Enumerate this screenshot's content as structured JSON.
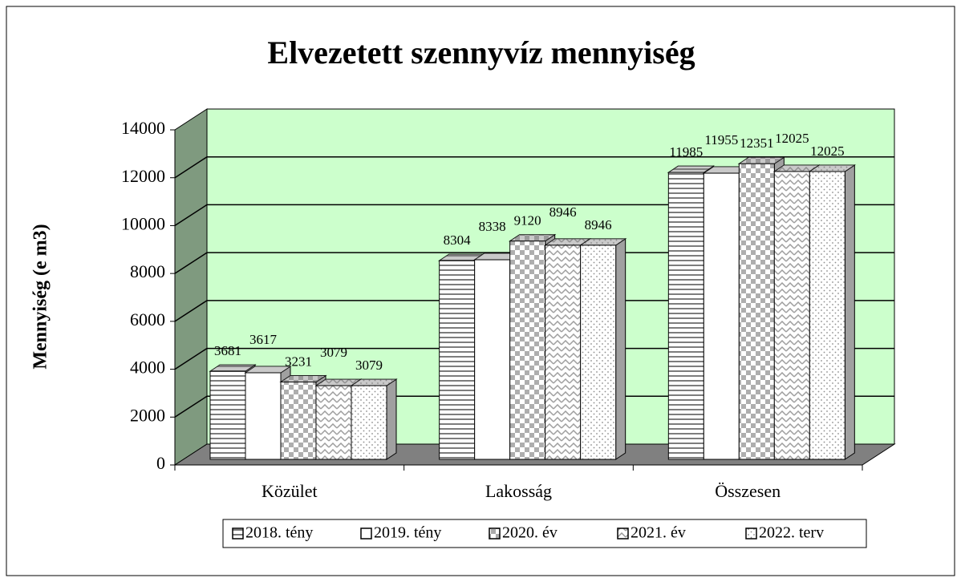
{
  "chart_data": {
    "type": "bar3d",
    "title": "Elvezetett szennyvíz mennyiség",
    "y_label": "Mennyiség (e m3)",
    "categories": [
      "Közület",
      "Lakosság",
      "Összesen"
    ],
    "series": [
      {
        "name": "2018. tény",
        "color": "#ffffff",
        "pattern": "horizontal-lines",
        "values": [
          3681,
          8304,
          11985
        ]
      },
      {
        "name": "2019. tény",
        "color": "#ffffff",
        "pattern": "none",
        "values": [
          3617,
          8338,
          11955
        ]
      },
      {
        "name": "2020. év",
        "color": "#ffffff",
        "pattern": "checker",
        "values": [
          3231,
          9120,
          12351
        ]
      },
      {
        "name": "2021. év",
        "color": "#ffffff",
        "pattern": "zigzag",
        "values": [
          3079,
          8946,
          12025
        ]
      },
      {
        "name": "2022. terv",
        "color": "#ffffff",
        "pattern": "dots",
        "values": [
          3079,
          8946,
          12025
        ]
      }
    ],
    "ylim": [
      0,
      14000
    ],
    "yticks": [
      0,
      2000,
      4000,
      6000,
      8000,
      10000,
      12000,
      14000
    ],
    "grid": true,
    "legend": "bottom"
  }
}
